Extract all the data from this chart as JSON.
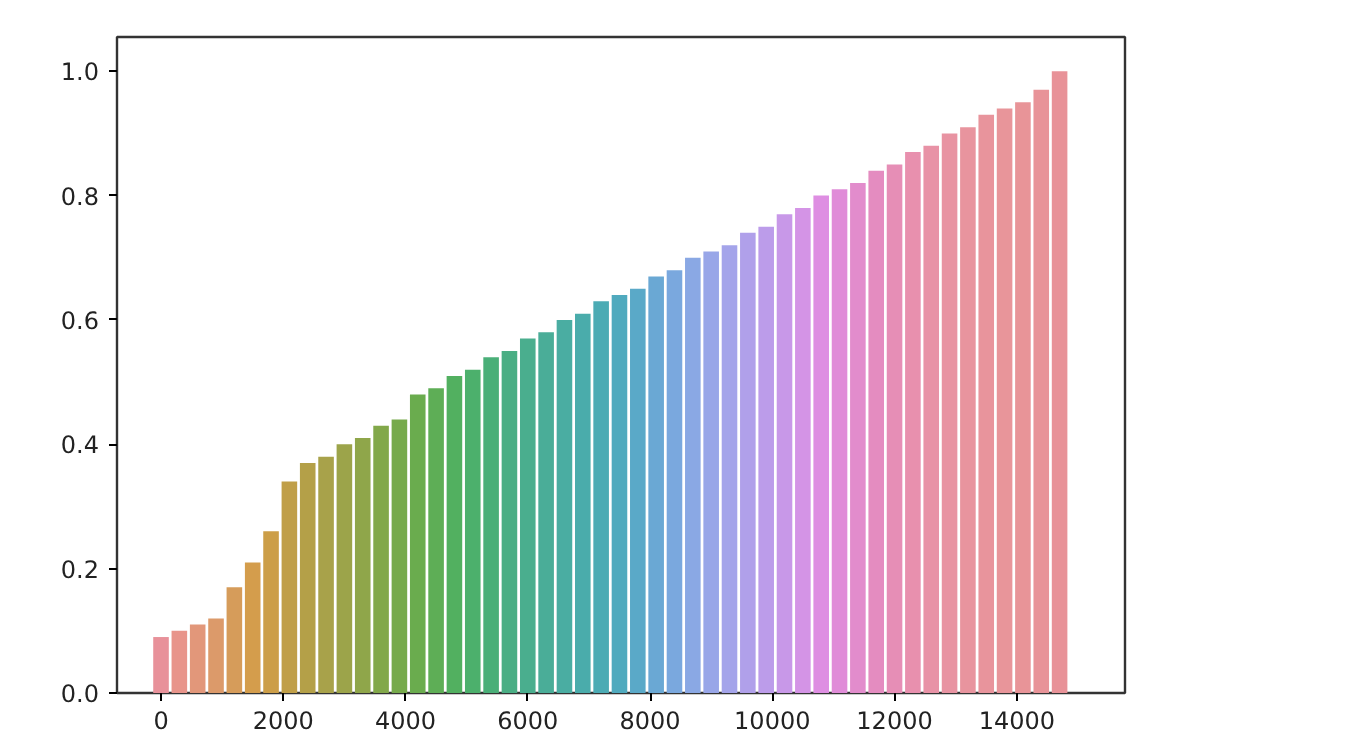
{
  "chart_data": {
    "type": "bar",
    "x": [
      0,
      300,
      600,
      900,
      1200,
      1500,
      1800,
      2100,
      2400,
      2700,
      3000,
      3300,
      3600,
      3900,
      4200,
      4500,
      4800,
      5100,
      5400,
      5700,
      6000,
      6300,
      6600,
      6900,
      7200,
      7500,
      7800,
      8100,
      8400,
      8700,
      9000,
      9300,
      9600,
      9900,
      10200,
      10500,
      10800,
      11100,
      11400,
      11700,
      12000,
      12300,
      12600,
      12900,
      13200,
      13500,
      13800,
      14100,
      14400,
      14700
    ],
    "values": [
      0.09,
      0.1,
      0.11,
      0.12,
      0.17,
      0.21,
      0.26,
      0.34,
      0.37,
      0.38,
      0.4,
      0.41,
      0.43,
      0.44,
      0.48,
      0.49,
      0.51,
      0.52,
      0.54,
      0.55,
      0.57,
      0.58,
      0.6,
      0.61,
      0.63,
      0.64,
      0.65,
      0.67,
      0.68,
      0.7,
      0.71,
      0.72,
      0.74,
      0.75,
      0.77,
      0.78,
      0.8,
      0.81,
      0.82,
      0.84,
      0.85,
      0.87,
      0.88,
      0.9,
      0.91,
      0.93,
      0.94,
      0.95,
      0.97,
      1.0
    ],
    "colors": [
      "#e8919a",
      "#e8948a",
      "#e2977a",
      "#dc9a6a",
      "#d69c5a",
      "#d49d4c",
      "#cc9e48",
      "#c09f48",
      "#b4a048",
      "#a8a24a",
      "#9ca44a",
      "#8fa64a",
      "#82a84a",
      "#76aa4b",
      "#6aac4e",
      "#5eae56",
      "#52b060",
      "#4cb06c",
      "#4aaf78",
      "#4aae84",
      "#4aae8e",
      "#4aad98",
      "#4aada2",
      "#4aacab",
      "#4cabb4",
      "#50aabe",
      "#5aa9c8",
      "#6aa8d4",
      "#7aa8de",
      "#8aa8e4",
      "#98a6e8",
      "#a4a4ea",
      "#b0a0ea",
      "#bc9cea",
      "#c898e8",
      "#d494e6",
      "#de8ee2",
      "#e08cd8",
      "#e28ccc",
      "#e48cc0",
      "#e68eb6",
      "#e890ae",
      "#e892a6",
      "#e893a2",
      "#e8949e",
      "#e8949c",
      "#e8959a",
      "#e89498",
      "#e89398",
      "#e89298"
    ],
    "xlim": [
      -720,
      15770
    ],
    "ylim": [
      0,
      1.055
    ],
    "xticks": [
      0,
      2000,
      4000,
      6000,
      8000,
      10000,
      12000,
      14000
    ],
    "yticks": [
      {
        "value": 0,
        "label": "0.0"
      },
      {
        "value": 0.2,
        "label": "0.2"
      },
      {
        "value": 0.4,
        "label": "0.4"
      },
      {
        "value": 0.6,
        "label": "0.6"
      },
      {
        "value": 0.8,
        "label": "0.8"
      },
      {
        "value": 1.0,
        "label": "1.0"
      }
    ],
    "grid": false
  }
}
